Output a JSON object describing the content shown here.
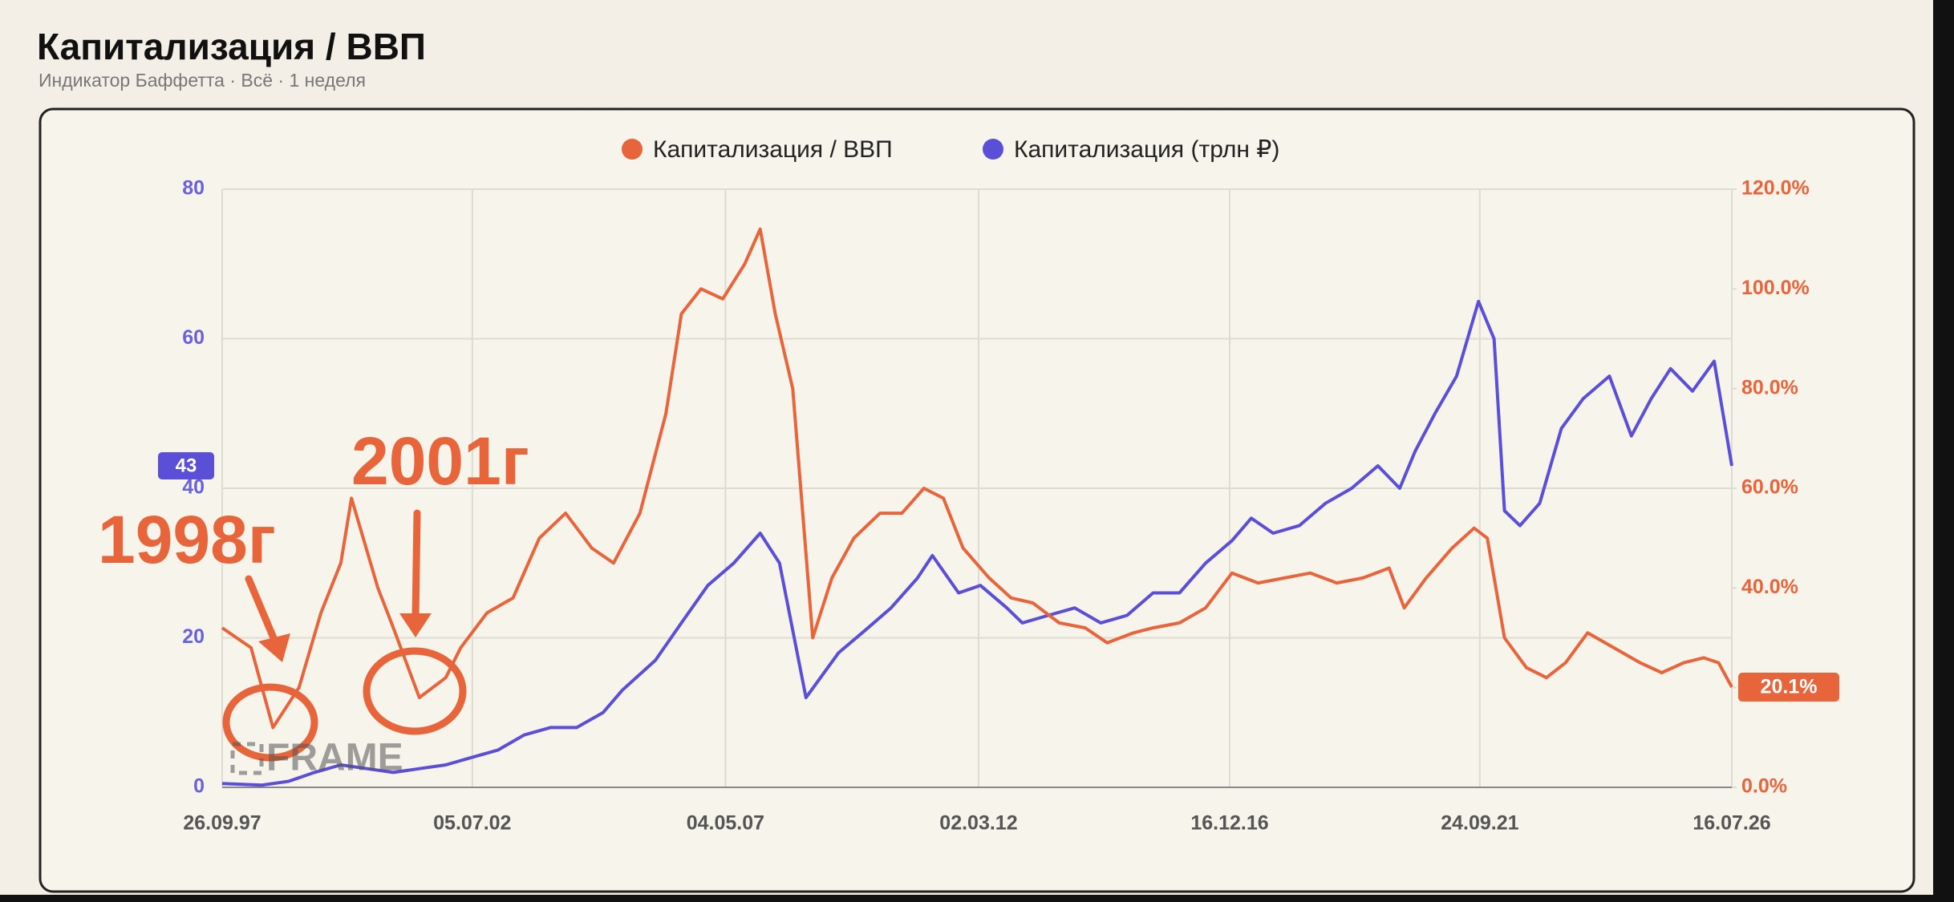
{
  "chart_data": {
    "type": "line",
    "title": "Капитализация / ВВП",
    "subtitle": "Индикатор Баффетта · Всё · 1 неделя",
    "annotations": [
      "1998г",
      "2001г"
    ],
    "watermark": "FRAME",
    "xlim": [
      "26.09.97",
      "16.07.26"
    ],
    "xticks": [
      "26.09.97",
      "05.07.02",
      "04.05.07",
      "02.03.12",
      "16.12.16",
      "24.09.21",
      "16.07.26"
    ],
    "ylim": [
      0,
      80
    ],
    "yticks": [
      0,
      20,
      40,
      60,
      80
    ],
    "y2lim": [
      0,
      120
    ],
    "y2ticks": [
      {
        "value": 0,
        "label": "0.0%"
      },
      {
        "value": 20,
        "label": "20.0%"
      },
      {
        "value": 40,
        "label": "40.0%"
      },
      {
        "value": 60,
        "label": "60.0%"
      },
      {
        "value": 80,
        "label": "80.0%"
      },
      {
        "value": 100,
        "label": "100.0%"
      },
      {
        "value": 120,
        "label": "120.0%"
      }
    ],
    "y_marker": 43,
    "y2_marker": {
      "value": 20.1,
      "label": "20.1%"
    },
    "grid": true,
    "legend": "top",
    "series": [
      {
        "name": "Капитализация / ВВП",
        "color": "#e8643a",
        "axis": "y2",
        "x": [
          "26.09.97",
          "15.04.98",
          "15.09.98",
          "15.03.99",
          "15.08.99",
          "01.01.00",
          "15.03.00",
          "15.09.00",
          "01.01.01",
          "01.07.01",
          "01.01.02",
          "15.04.02",
          "15.10.02",
          "15.04.03",
          "15.10.03",
          "15.04.04",
          "15.10.04",
          "15.03.05",
          "15.09.05",
          "15.03.06",
          "01.07.06",
          "15.11.06",
          "15.04.07",
          "15.09.07",
          "01.01.08",
          "15.04.08",
          "15.08.08",
          "01.01.09",
          "15.05.09",
          "15.10.09",
          "15.04.10",
          "15.09.10",
          "15.02.11",
          "01.07.11",
          "15.11.11",
          "15.05.12",
          "15.10.12",
          "15.03.13",
          "15.09.13",
          "15.03.14",
          "15.08.14",
          "15.02.15",
          "01.07.15",
          "01.01.16",
          "01.07.16",
          "01.01.17",
          "01.07.17",
          "01.01.18",
          "01.07.18",
          "01.01.19",
          "01.07.19",
          "01.01.20",
          "15.04.20",
          "15.09.20",
          "15.03.21",
          "15.08.21",
          "15.11.21",
          "15.03.22",
          "15.08.22",
          "01.01.23",
          "15.05.23",
          "15.10.23",
          "15.04.24",
          "15.10.24",
          "15.03.25",
          "15.08.25",
          "01.01.26",
          "15.04.26",
          "16.07.26"
        ],
        "values": [
          32,
          28,
          12,
          20,
          35,
          45,
          58,
          40,
          32,
          18,
          22,
          28,
          35,
          38,
          50,
          55,
          48,
          45,
          55,
          75,
          95,
          100,
          98,
          105,
          112,
          95,
          80,
          30,
          42,
          50,
          55,
          55,
          60,
          58,
          48,
          42,
          38,
          37,
          33,
          32,
          29,
          31,
          32,
          33,
          36,
          43,
          41,
          42,
          43,
          41,
          42,
          44,
          36,
          42,
          48,
          52,
          50,
          30,
          24,
          22,
          25,
          31,
          28,
          25,
          23,
          25,
          26,
          25,
          20.1
        ]
      },
      {
        "name": "Капитализация (трлн ₽)",
        "color": "#5a4fd6",
        "axis": "y",
        "x": [
          "26.09.97",
          "01.07.98",
          "01.01.99",
          "01.07.99",
          "01.01.00",
          "01.07.00",
          "01.01.01",
          "01.07.01",
          "01.01.02",
          "01.07.02",
          "01.01.03",
          "01.07.03",
          "01.01.04",
          "01.07.04",
          "01.01.05",
          "15.05.05",
          "01.01.06",
          "01.07.06",
          "01.01.07",
          "01.07.07",
          "01.01.08",
          "15.05.08",
          "15.11.08",
          "01.07.09",
          "01.01.10",
          "01.07.10",
          "01.01.11",
          "15.04.11",
          "15.10.11",
          "15.03.12",
          "15.09.12",
          "01.01.13",
          "01.07.13",
          "01.01.14",
          "01.07.14",
          "01.01.15",
          "01.07.15",
          "01.01.16",
          "01.07.16",
          "01.01.17",
          "15.05.17",
          "15.10.17",
          "15.04.18",
          "15.10.18",
          "15.04.19",
          "15.10.19",
          "15.03.20",
          "01.07.20",
          "15.11.20",
          "15.04.21",
          "15.09.21",
          "01.01.22",
          "15.03.22",
          "01.07.22",
          "15.11.22",
          "15.04.23",
          "15.09.23",
          "15.03.24",
          "15.08.24",
          "01.01.25",
          "15.05.25",
          "15.10.25",
          "15.03.26",
          "16.07.26"
        ],
        "values": [
          0.5,
          0.3,
          0.8,
          2,
          3,
          2.5,
          2,
          2.5,
          3,
          4,
          5,
          7,
          8,
          8,
          10,
          13,
          17,
          22,
          27,
          30,
          34,
          30,
          12,
          18,
          21,
          24,
          28,
          31,
          26,
          27,
          24,
          22,
          23,
          24,
          22,
          23,
          26,
          26,
          30,
          33,
          36,
          34,
          35,
          38,
          40,
          43,
          40,
          45,
          50,
          55,
          65,
          60,
          37,
          35,
          38,
          48,
          52,
          55,
          47,
          52,
          56,
          53,
          57,
          43
        ]
      }
    ]
  }
}
